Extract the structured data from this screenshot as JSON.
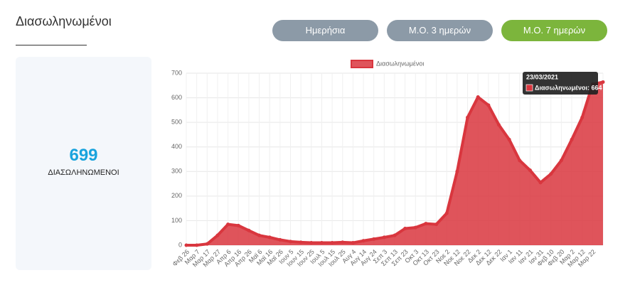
{
  "header": {
    "title": "Διασωληνωμένοι"
  },
  "buttons": [
    {
      "label": "Ημερήσια",
      "color": "#8c9aa7"
    },
    {
      "label": "Μ.Ο. 3 ημερών",
      "color": "#8c9aa7"
    },
    {
      "label": "Μ.Ο. 7 ημερών",
      "color": "#7cb53c"
    }
  ],
  "card": {
    "value": 699,
    "label": "ΔΙΑΣΩΛΗΝΩΜΕΝΟΙ"
  },
  "chart_data": {
    "type": "line",
    "categories": [
      "Φεβ 26",
      "Μαρ 7",
      "Μαρ 17",
      "Μαρ 27",
      "Απρ 6",
      "Απρ 16",
      "Απρ 26",
      "Μαϊ 6",
      "Μαϊ 16",
      "Μαϊ 26",
      "Ιουν 5",
      "Ιουν 15",
      "Ιουν 25",
      "Ιουλ 5",
      "Ιουλ 15",
      "Ιουλ 25",
      "Αυγ 4",
      "Αυγ 14",
      "Αυγ 24",
      "Σεπ 3",
      "Σεπ 13",
      "Σεπ 23",
      "Οκτ 3",
      "Οκτ 13",
      "Οκτ 23",
      "Νοε 2",
      "Νοε 12",
      "Νοε 22",
      "Δεκ 2",
      "Δεκ 12",
      "Δεκ 22",
      "Ιαν 1",
      "Ιαν 11",
      "Ιαν 21",
      "Ιαν 31",
      "Φεβ 10",
      "Φεβ 20",
      "Μαρ 2",
      "Μαρ 12",
      "Μαρ 22",
      null
    ],
    "series": [
      {
        "name": "Διασωληνωμένοι",
        "color": "#d9363e",
        "values": [
          0,
          0,
          5,
          40,
          85,
          80,
          60,
          40,
          32,
          22,
          15,
          12,
          10,
          10,
          10,
          12,
          10,
          18,
          25,
          32,
          40,
          68,
          72,
          88,
          85,
          130,
          300,
          520,
          603,
          570,
          490,
          430,
          345,
          305,
          255,
          290,
          345,
          430,
          520,
          655,
          664
        ]
      }
    ],
    "ylim": [
      0,
      700
    ],
    "yticks": [
      0,
      100,
      200,
      300,
      400,
      500,
      600,
      700
    ],
    "grid": true,
    "legend": "top",
    "tooltip": {
      "title": "23/03/2021",
      "label": "Διασωληνωμένοι: 664"
    }
  }
}
